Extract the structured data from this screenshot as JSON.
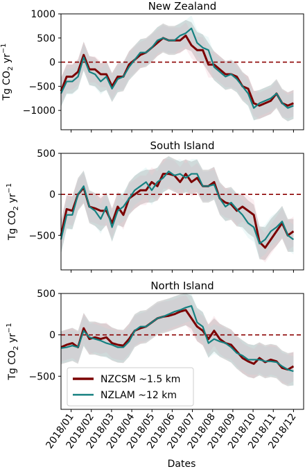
{
  "x_axis_label": "Dates",
  "x_ticks": [
    "2018/01",
    "2018/02",
    "2018/03",
    "2018/04",
    "2018/05",
    "2018/06",
    "2018/07",
    "2018/08",
    "2018/09",
    "2018/10",
    "2018/11",
    "2018/12"
  ],
  "y_label_parts": {
    "prefix": "Tg CO",
    "sub": "2",
    "unit": " yr",
    "sup": "−1"
  },
  "legend": [
    {
      "label": "NZCSM ~1.5 km",
      "color": "#7b0000"
    },
    {
      "label": "NZLAM ~12 km",
      "color": "#148080"
    }
  ],
  "colors": {
    "nzcsm": "#7b0000",
    "nzlam": "#148080",
    "band": "#aaaaaa",
    "zero_line": "#8b0000"
  },
  "chart_data": [
    {
      "type": "line",
      "title": "New Zealand",
      "ylim": [
        -1400,
        1000
      ],
      "yticks": [
        -1000,
        -500,
        0,
        500,
        1000
      ],
      "grid": false,
      "legend_position": "none",
      "x_week_start": 0.5,
      "band_width": 300,
      "series": [
        {
          "name": "NZCSM ~1.5 km",
          "values": [
            -600,
            -300,
            -300,
            -200,
            150,
            -150,
            -150,
            -250,
            -250,
            -500,
            -300,
            -300,
            -50,
            50,
            150,
            200,
            300,
            400,
            500,
            450,
            450,
            450,
            550,
            350,
            250,
            250,
            -50,
            -50,
            -150,
            -250,
            -250,
            -300,
            -500,
            -550,
            -850,
            -900,
            -850,
            -800,
            -650,
            -850,
            -900,
            -850
          ]
        },
        {
          "name": "NZLAM ~12 km",
          "values": [
            -650,
            -400,
            -400,
            -300,
            100,
            -200,
            -250,
            -400,
            -300,
            -550,
            -350,
            -300,
            -100,
            50,
            200,
            200,
            300,
            450,
            500,
            450,
            450,
            550,
            600,
            700,
            400,
            300,
            250,
            -100,
            -200,
            -300,
            -250,
            -350,
            -500,
            -650,
            -950,
            -850,
            -800,
            -750,
            -650,
            -850,
            -950,
            -900
          ]
        }
      ]
    },
    {
      "type": "line",
      "title": "South Island",
      "ylim": [
        -920,
        500
      ],
      "yticks": [
        -500,
        0,
        500
      ],
      "grid": false,
      "legend_position": "none",
      "x_week_start": 0.5,
      "band_width": 200,
      "series": [
        {
          "name": "NZCSM ~1.5 km",
          "values": [
            -500,
            -180,
            -200,
            0,
            80,
            -150,
            -170,
            -200,
            -200,
            -350,
            -150,
            -250,
            -50,
            0,
            50,
            50,
            150,
            100,
            250,
            250,
            230,
            150,
            250,
            150,
            200,
            100,
            100,
            150,
            -50,
            -100,
            -120,
            -200,
            -150,
            -200,
            -250,
            -580,
            -650,
            -550,
            -450,
            -350,
            -500,
            -450
          ]
        },
        {
          "name": "NZLAM ~12 km",
          "values": [
            -550,
            -250,
            -250,
            0,
            100,
            -150,
            -200,
            -300,
            -150,
            -400,
            -200,
            -150,
            -50,
            50,
            100,
            150,
            50,
            150,
            200,
            280,
            230,
            250,
            200,
            250,
            250,
            100,
            100,
            120,
            -50,
            -150,
            -100,
            -180,
            -250,
            -350,
            -400,
            -600,
            -550,
            -450,
            -400,
            -330,
            -500,
            -550
          ]
        }
      ]
    },
    {
      "type": "line",
      "title": "North Island",
      "ylim": [
        -900,
        500
      ],
      "yticks": [
        -500,
        0,
        500
      ],
      "grid": false,
      "legend_position": "lower left",
      "x_week_start": 0.5,
      "band_width": 200,
      "series": [
        {
          "name": "NZCSM ~1.5 km",
          "values": [
            -150,
            -120,
            -100,
            -150,
            80,
            -50,
            -30,
            -50,
            -30,
            -100,
            -120,
            -130,
            -50,
            50,
            80,
            100,
            150,
            200,
            220,
            230,
            250,
            280,
            300,
            200,
            100,
            50,
            -50,
            50,
            -50,
            -100,
            -120,
            -200,
            -280,
            -320,
            -350,
            -280,
            -330,
            -300,
            -320,
            -400,
            -420,
            -380
          ]
        },
        {
          "name": "NZLAM ~12 km",
          "values": [
            -160,
            -150,
            -130,
            -150,
            50,
            -30,
            -50,
            -70,
            -100,
            -120,
            -150,
            -150,
            -80,
            50,
            100,
            100,
            150,
            200,
            220,
            250,
            280,
            300,
            330,
            350,
            150,
            100,
            -100,
            -50,
            -80,
            -100,
            -150,
            -220,
            -250,
            -300,
            -300,
            -300,
            -320,
            -320,
            -330,
            -380,
            -420,
            -440
          ]
        }
      ]
    }
  ]
}
